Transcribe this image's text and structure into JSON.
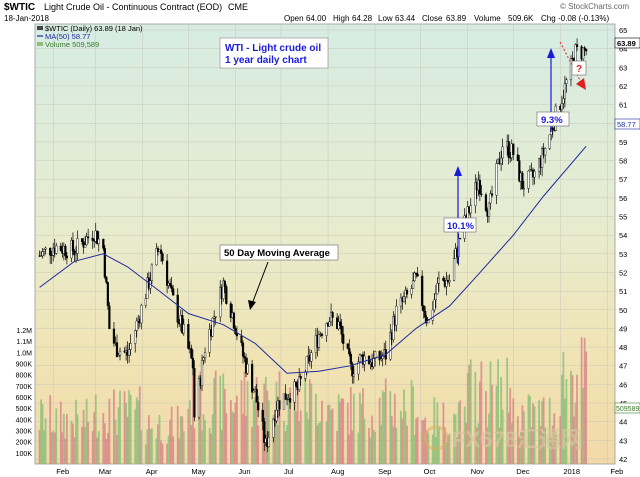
{
  "header": {
    "ticker": "$WTIC",
    "name": "Light Crude Oil - Continuous Contract (EOD)",
    "exchange": "CME",
    "date": "18-Jan-2018",
    "credit": "© StockCharts.com",
    "open_label": "Open",
    "open": "64.00",
    "high_label": "High",
    "high": "64.28",
    "low_label": "Low",
    "low": "63.44",
    "close_label": "Close",
    "close": "63.89",
    "volume_label": "Volume",
    "volume": "509.6K",
    "chg_label": "Chg",
    "chg": "-0.08 (-0.13%)"
  },
  "legend": {
    "price": "$WTIC (Daily) 63.89 (18 Jan)",
    "ma": "MA(50) 58.77",
    "volume": "Volume 509,589"
  },
  "annotations": {
    "title_line1": "WTI -  Light crude oil",
    "title_line2": "1 year daily chart",
    "ma_label": "50 Day Moving Average",
    "pct1": "10.1%",
    "pct2": "9.3%",
    "question": "?"
  },
  "badges": {
    "close": "63.89",
    "ma": "58.77",
    "volume": "509589"
  },
  "watermark": "FX678汇通网",
  "colors": {
    "price_line": "#000000",
    "ma_line": "#1f2aa0",
    "volume_up": "#8fbf7a",
    "volume_down": "#d88a8a",
    "annotation_text": "#1a1adc",
    "arrow_blue": "#1a1adc",
    "arrow_red": "#e02020"
  },
  "chart_data": {
    "type": "line",
    "title": "$WTIC Light Crude Oil - Continuous Contract (EOD)",
    "x_labels": [
      "Feb",
      "Mar",
      "Apr",
      "May",
      "Jun",
      "Jul",
      "Aug",
      "Sep",
      "Oct",
      "Nov",
      "Dec",
      "2018",
      "Feb"
    ],
    "y_ticks": [
      42,
      43,
      44,
      45,
      46,
      47,
      48,
      49,
      50,
      51,
      52,
      53,
      54,
      55,
      56,
      57,
      58,
      59,
      60,
      61,
      62,
      63,
      64,
      65
    ],
    "ylim": [
      42,
      65
    ],
    "volume_ticks": [
      "100K",
      "200K",
      "300K",
      "400K",
      "500K",
      "600K",
      "700K",
      "800K",
      "900K",
      "1.0M",
      "1.1M",
      "1.2M"
    ],
    "volume_ylim": [
      0,
      1200
    ],
    "grid": true,
    "series": [
      {
        "name": "$WTIC (Daily) 63.89 (18 Jan)",
        "x": [
          "2017-01-23",
          "2017-02-01",
          "2017-02-15",
          "2017-02-28",
          "2017-03-06",
          "2017-03-10",
          "2017-03-14",
          "2017-03-22",
          "2017-03-29",
          "2017-04-05",
          "2017-04-12",
          "2017-04-20",
          "2017-04-27",
          "2017-05-04",
          "2017-05-05",
          "2017-05-12",
          "2017-05-24",
          "2017-05-30",
          "2017-06-05",
          "2017-06-14",
          "2017-06-21",
          "2017-06-28",
          "2017-07-05",
          "2017-07-12",
          "2017-07-19",
          "2017-07-26",
          "2017-08-01",
          "2017-08-08",
          "2017-08-16",
          "2017-08-24",
          "2017-08-31",
          "2017-09-08",
          "2017-09-15",
          "2017-09-22",
          "2017-09-28",
          "2017-10-06",
          "2017-10-13",
          "2017-10-20",
          "2017-10-27",
          "2017-11-03",
          "2017-11-08",
          "2017-11-15",
          "2017-11-24",
          "2017-12-01",
          "2017-12-07",
          "2017-12-14",
          "2017-12-21",
          "2017-12-29",
          "2018-01-04",
          "2018-01-11",
          "2018-01-18"
        ],
        "values": [
          52.9,
          53.4,
          53.2,
          54.2,
          53.3,
          49.0,
          48.0,
          47.6,
          49.5,
          51.5,
          53.4,
          50.7,
          49.0,
          47.0,
          44.3,
          48.0,
          51.4,
          49.8,
          47.8,
          45.5,
          42.7,
          44.9,
          45.5,
          45.7,
          47.2,
          48.7,
          49.6,
          49.2,
          46.8,
          47.5,
          47.2,
          47.6,
          49.9,
          50.7,
          51.6,
          49.3,
          51.5,
          51.6,
          53.9,
          55.6,
          57.0,
          55.3,
          58.9,
          58.4,
          56.7,
          57.1,
          58.4,
          60.4,
          61.9,
          63.8,
          63.89
        ]
      },
      {
        "name": "MA(50) 58.77",
        "x": [
          "2017-01-23",
          "2017-02-15",
          "2017-03-06",
          "2017-03-22",
          "2017-04-12",
          "2017-05-01",
          "2017-05-24",
          "2017-06-14",
          "2017-07-05",
          "2017-07-26",
          "2017-08-16",
          "2017-09-08",
          "2017-09-28",
          "2017-10-20",
          "2017-11-08",
          "2017-12-01",
          "2017-12-21",
          "2018-01-18"
        ],
        "values": [
          51.2,
          52.6,
          53.0,
          52.3,
          51.0,
          49.8,
          49.2,
          48.2,
          46.6,
          46.7,
          47.0,
          47.6,
          49.0,
          50.2,
          51.9,
          54.0,
          56.1,
          58.77
        ]
      },
      {
        "name": "Volume 509,589",
        "unit": "K",
        "x": [
          "2017-02",
          "2017-03",
          "2017-04",
          "2017-05",
          "2017-06",
          "2017-07",
          "2017-08",
          "2017-09",
          "2017-10",
          "2017-11",
          "2017-12",
          "2018-01"
        ],
        "values": [
          420,
          500,
          380,
          600,
          650,
          620,
          520,
          560,
          430,
          700,
          480,
          850
        ]
      }
    ]
  }
}
